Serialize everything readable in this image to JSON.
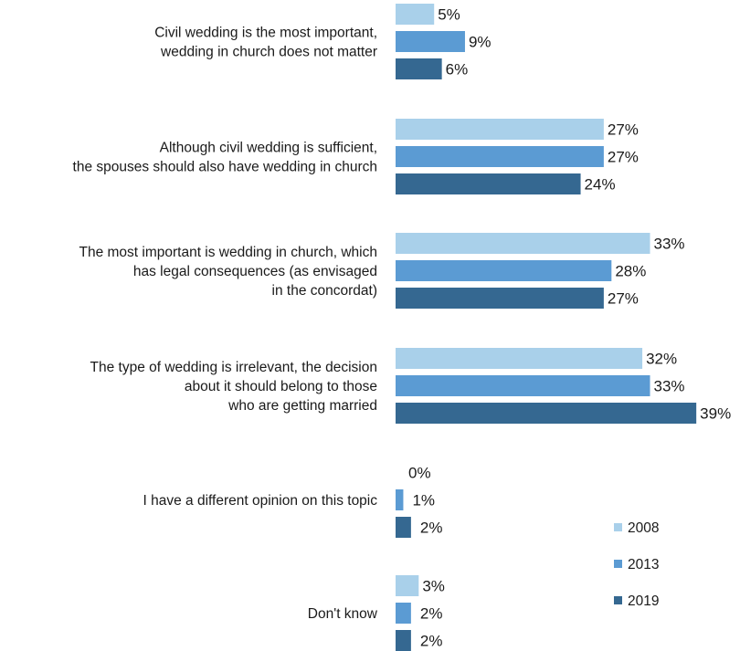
{
  "chart_data": {
    "type": "bar",
    "orientation": "horizontal",
    "categories": [
      [
        "Civil wedding is the most important,",
        "wedding in church does not matter"
      ],
      [
        "Although civil wedding is sufficient,",
        "the spouses should also have wedding in church"
      ],
      [
        "The most important is wedding in church, which",
        "has legal consequences (as envisaged",
        "in the concordat)"
      ],
      [
        "The type of wedding is irrelevant, the decision",
        "about it should belong to those",
        "who are getting married"
      ],
      [
        "I have a different opinion on this topic"
      ],
      [
        "Don't know"
      ]
    ],
    "series": [
      {
        "name": "2008",
        "color": "#a9d0ea",
        "values": [
          5,
          27,
          33,
          32,
          0,
          3
        ]
      },
      {
        "name": "2013",
        "color": "#5b9bd3",
        "values": [
          9,
          27,
          28,
          33,
          1,
          2
        ]
      },
      {
        "name": "2019",
        "color": "#356891",
        "values": [
          6,
          24,
          27,
          39,
          2,
          2
        ]
      }
    ],
    "value_suffix": "%",
    "legend_position": "bottom-right",
    "grid": false
  }
}
